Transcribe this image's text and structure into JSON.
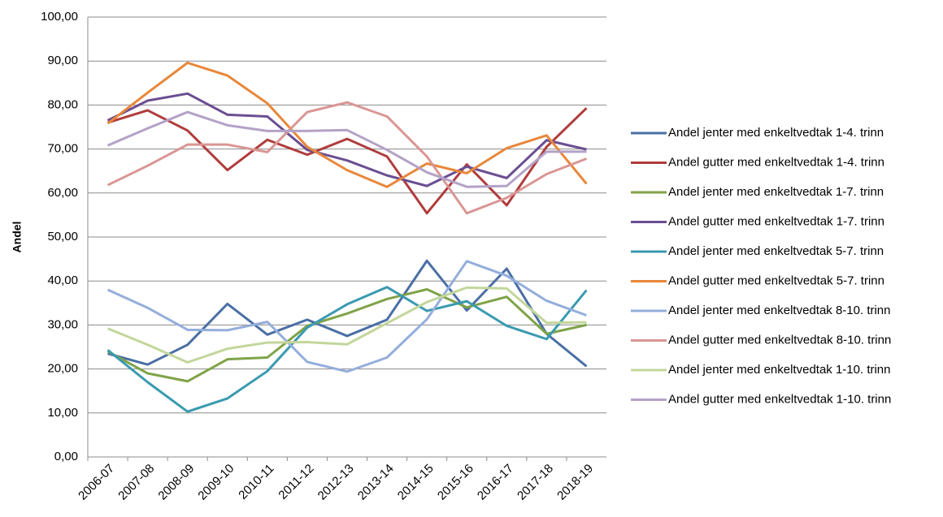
{
  "chart_data": {
    "type": "line",
    "ylabel": "Andel",
    "categories": [
      "2006-07",
      "2007-08",
      "2008-09",
      "2009-10",
      "2010-11",
      "2011-12",
      "2012-13",
      "2013-14",
      "2014-15",
      "2015-16",
      "2016-17",
      "2017-18",
      "2018-19"
    ],
    "ylim": [
      0,
      100
    ],
    "yticks": [
      {
        "value": 0,
        "label": "0,00"
      },
      {
        "value": 10,
        "label": "10,00"
      },
      {
        "value": 20,
        "label": "20,00"
      },
      {
        "value": 30,
        "label": "30,00"
      },
      {
        "value": 40,
        "label": "40,00"
      },
      {
        "value": 50,
        "label": "50,00"
      },
      {
        "value": 60,
        "label": "60,00"
      },
      {
        "value": 70,
        "label": "70,00"
      },
      {
        "value": 80,
        "label": "80,00"
      },
      {
        "value": 90,
        "label": "90,00"
      },
      {
        "value": 100,
        "label": "100,00"
      }
    ],
    "grid": true,
    "legend": "right",
    "series": [
      {
        "name": "Andel jenter med enkeltvedtak 1-4. trinn",
        "color": "#4a6fa5",
        "values": [
          23.5,
          21,
          25.5,
          34.8,
          27.8,
          31.2,
          27.5,
          31.2,
          44.6,
          33.3,
          42.8,
          28,
          20.6
        ]
      },
      {
        "name": "Andel gutter med enkeltvedtak 1-4. trinn",
        "color": "#b03c3c",
        "values": [
          76,
          78.8,
          74.2,
          65.2,
          72.1,
          68.7,
          72.3,
          68.3,
          55.4,
          66.5,
          57.2,
          70.5,
          79.3
        ]
      },
      {
        "name": "Andel jenter med enkeltvedtak 1-7. trinn",
        "color": "#7fa347",
        "values": [
          24,
          19,
          17.2,
          22.2,
          22.6,
          29.8,
          32.6,
          35.9,
          38.1,
          34,
          36.4,
          28,
          30
        ]
      },
      {
        "name": "Andel gutter med enkeltvedtak 1-7. trinn",
        "color": "#6a4e92",
        "values": [
          76.5,
          81,
          82.6,
          77.8,
          77.4,
          69.8,
          67.4,
          64,
          61.6,
          66,
          63.4,
          72,
          69.9
        ]
      },
      {
        "name": "Andel jenter med enkeltvedtak 5-7. trinn",
        "color": "#3a9ab0",
        "values": [
          24.3,
          17,
          10.3,
          13.3,
          19.5,
          29.4,
          34.7,
          38.6,
          33.2,
          35.4,
          29.8,
          26.8,
          37.9
        ]
      },
      {
        "name": "Andel gutter med enkeltvedtak 5-7. trinn",
        "color": "#e8873a",
        "values": [
          75.8,
          82.8,
          89.6,
          86.7,
          80.4,
          70.5,
          65.2,
          61.4,
          66.7,
          64.5,
          70.2,
          73.1,
          62.1
        ]
      },
      {
        "name": "Andel jenter med enkeltvedtak 8-10. trinn",
        "color": "#94aedb",
        "values": [
          38,
          33.9,
          28.9,
          28.8,
          30.7,
          21.6,
          19.4,
          22.6,
          31.3,
          44.5,
          41.2,
          35.5,
          32.2
        ]
      },
      {
        "name": "Andel gutter med enkeltvedtak 8-10. trinn",
        "color": "#d99694",
        "values": [
          61.8,
          66.2,
          71,
          71,
          69.3,
          78.4,
          80.6,
          77.4,
          68.3,
          55.4,
          58.9,
          64.3,
          67.8
        ]
      },
      {
        "name": "Andel jenter med enkeltvedtak 1-10. trinn",
        "color": "#c3d69b",
        "values": [
          29.2,
          25.5,
          21.5,
          24.6,
          26,
          26.1,
          25.6,
          30.4,
          35.2,
          38.5,
          38.3,
          30.5,
          30.6
        ]
      },
      {
        "name": "Andel gutter med enkeltvedtak 1-10. trinn",
        "color": "#b3a2c7",
        "values": [
          70.8,
          74.7,
          78.4,
          75.4,
          74.1,
          74.1,
          74.3,
          69.8,
          64.7,
          61.4,
          61.6,
          69.4,
          69.4
        ]
      }
    ]
  }
}
